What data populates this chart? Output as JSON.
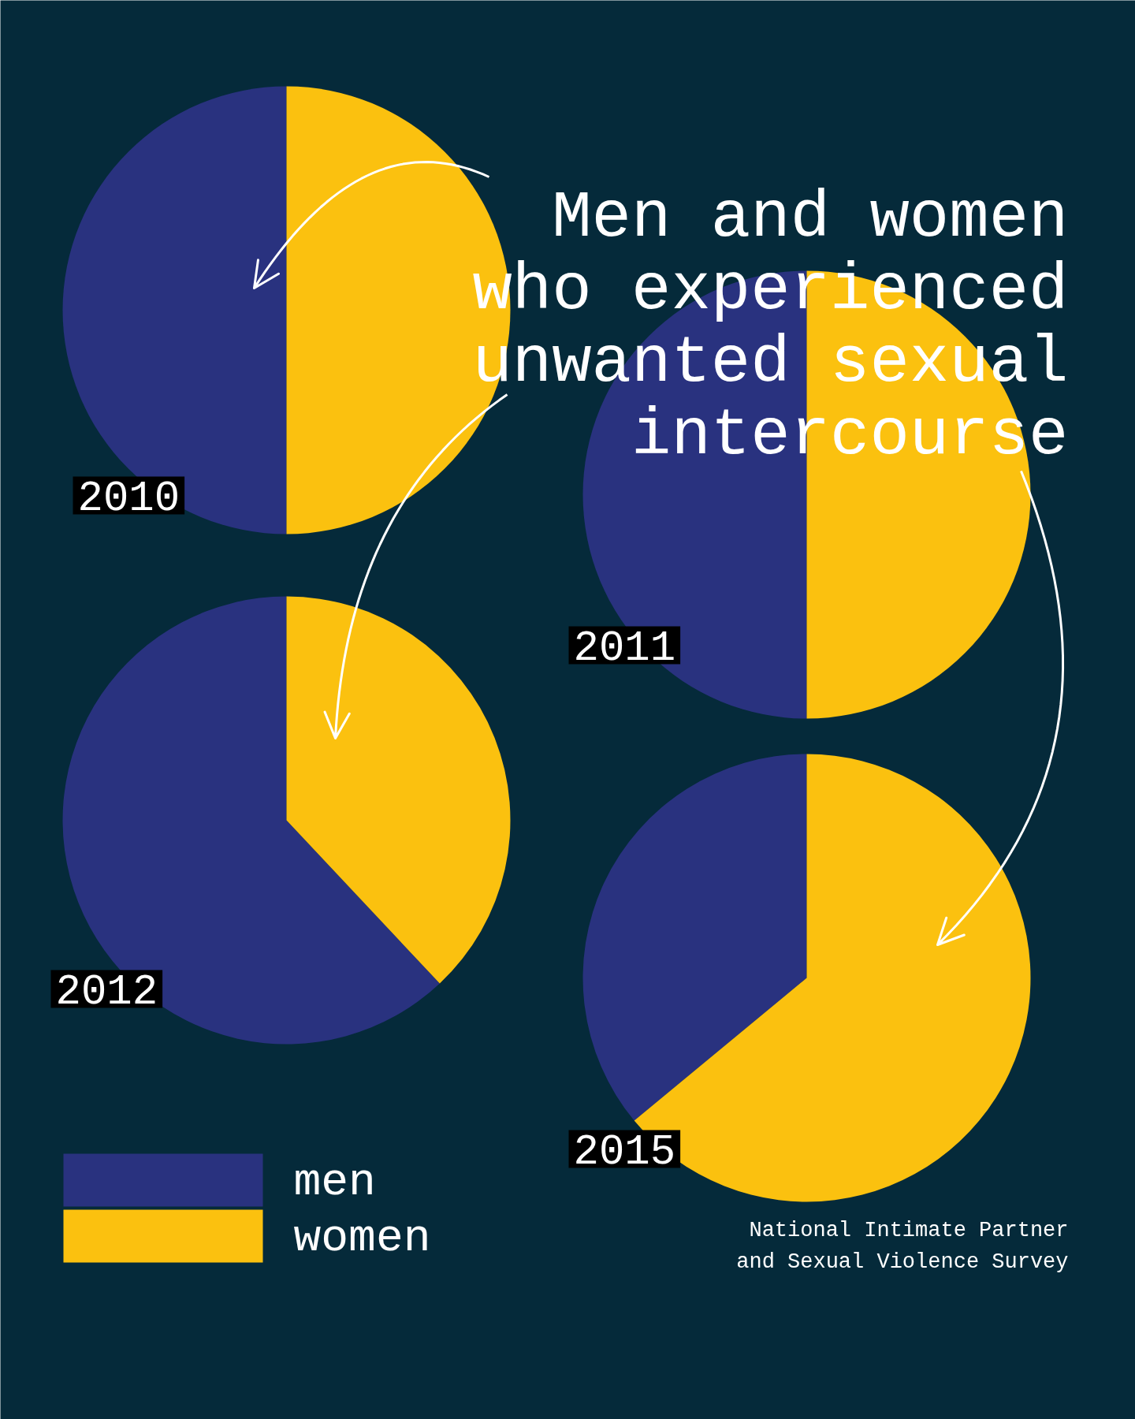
{
  "chart_data": [
    {
      "type": "pie",
      "title": "2010",
      "categories": [
        "men",
        "women"
      ],
      "values": [
        50,
        50
      ],
      "colors": [
        "#29327f",
        "#fbc10f"
      ],
      "legend": "bottom left",
      "annotations": [
        "Men and women who experienced unwanted sexual intercourse",
        "National Intimate Partner and Sexual Violence Survey"
      ]
    },
    {
      "type": "pie",
      "title": "2011",
      "values": [
        50,
        50
      ],
      "colors": [
        "#29327f",
        "#fbc10f"
      ]
    },
    {
      "type": "pie",
      "title": "2012",
      "values": [
        62,
        38
      ],
      "colors": [
        "#29327f",
        "#fbc10f"
      ]
    },
    {
      "type": "pie",
      "title": "2015",
      "values": [
        36,
        64
      ],
      "colors": [
        "#29327f",
        "#fbc10f"
      ]
    }
  ]
}
